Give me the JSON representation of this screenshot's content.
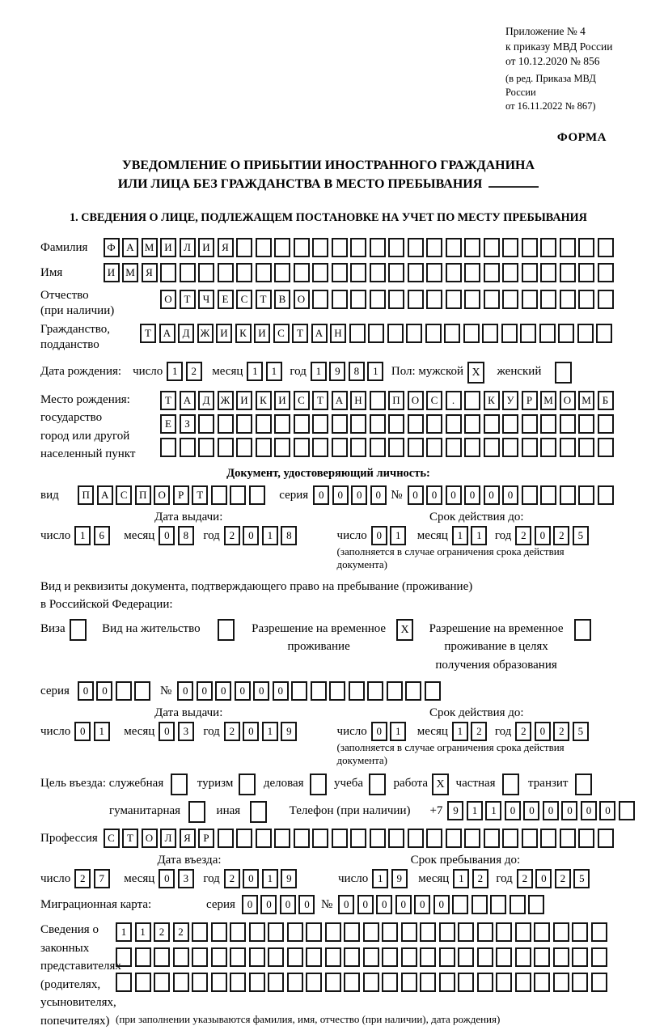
{
  "accent_border_color": "#141414",
  "header": {
    "annex_lines": [
      "Приложение № 4",
      "к приказу МВД России",
      "от 10.12.2020 № 856"
    ],
    "annex_note_lines": [
      "(в ред. Приказа МВД России",
      "от 16.11.2022 № 867)"
    ],
    "form_label": "ФОРМА"
  },
  "title": {
    "line1": "УВЕДОМЛЕНИЕ О ПРИБЫТИИ ИНОСТРАННОГО ГРАЖДАНИНА",
    "line2": "ИЛИ ЛИЦА БЕЗ ГРАЖДАНСТВА В МЕСТО ПРЕБЫВАНИЯ"
  },
  "section1_heading": "1. СВЕДЕНИЯ О ЛИЦЕ, ПОДЛЕЖАЩЕМ ПОСТАНОВКЕ НА УЧЕТ ПО МЕСТУ ПРЕБЫВАНИЯ",
  "labels": {
    "day": "число",
    "month": "месяц",
    "year": "год",
    "series": "серия",
    "number_sign": "№"
  },
  "person": {
    "surname_label": "Фамилия",
    "surname": {
      "value": "ФАМИЛИЯ",
      "count": 27
    },
    "name_label": "Имя",
    "name": {
      "value": "ИМЯ",
      "count": 27
    },
    "patronymic_label1": "Отчество",
    "patronymic_label2": "(при наличии)",
    "patronymic": {
      "value": "ОТЧЕСТВО",
      "count": 24
    },
    "citizenship_label1": "Гражданство,",
    "citizenship_label2": "подданство",
    "citizenship": {
      "value": "ТАДЖИКИСТАН",
      "count": 25
    },
    "birth_date_label": "Дата рождения:",
    "birth_day": {
      "value": "12",
      "count": 2
    },
    "birth_month": {
      "value": "11",
      "count": 2
    },
    "birth_year": {
      "value": "1981",
      "count": 4
    },
    "sex_male_label": "Пол: мужской",
    "sex_male": {
      "value": "X",
      "count": 1
    },
    "sex_female_label": "женский",
    "sex_female": {
      "value": "",
      "count": 1
    },
    "birth_place_labels": [
      "Место рождения:",
      "государство",
      "город или другой",
      "населенный пункт"
    ],
    "birth_place_row1": {
      "value": "ТАДЖИКИСТАН ПОС. КУРМОМБ",
      "count": 24
    },
    "birth_place_row2": {
      "value": "ЕЗ",
      "count": 24
    },
    "birth_place_row3": {
      "value": "",
      "count": 24
    }
  },
  "identity_doc": {
    "heading": "Документ, удостоверяющий личность:",
    "kind_label": "вид",
    "kind": {
      "value": "ПАСПОРТ",
      "count": 10
    },
    "series": {
      "value": "0000",
      "count": 4
    },
    "number": {
      "value": "000000",
      "count": 11
    },
    "issue_header": "Дата выдачи:",
    "issue_day": {
      "value": "16",
      "count": 2
    },
    "issue_month": {
      "value": "08",
      "count": 2
    },
    "issue_year": {
      "value": "2018",
      "count": 4
    },
    "valid_header": "Срок действия до:",
    "valid_day": {
      "value": "01",
      "count": 2
    },
    "valid_month": {
      "value": "11",
      "count": 2
    },
    "valid_year": {
      "value": "2025",
      "count": 4
    },
    "note": "(заполняется в случае ограничения срока действия документа)"
  },
  "residence_doc": {
    "intro_line1": "Вид и реквизиты документа, подтверждающего право на пребывание (проживание)",
    "intro_line2": "в Российской Федерации:",
    "visa_label": "Виза",
    "visa_box": {
      "value": "",
      "count": 1
    },
    "residence_permit_label": "Вид на жительство",
    "residence_permit_box": {
      "value": "",
      "count": 1
    },
    "temp_permit_lines": [
      "Разрешение на временное",
      "проживание"
    ],
    "temp_permit_box": {
      "value": "X",
      "count": 1
    },
    "edu_permit_lines": [
      "Разрешение на временное",
      "проживание в целях",
      "получения образования"
    ],
    "edu_permit_box": {
      "value": "",
      "count": 1
    },
    "series": {
      "value": "00",
      "count": 4
    },
    "number": {
      "value": "000000",
      "count": 14
    },
    "issue_header": "Дата выдачи:",
    "issue_day": {
      "value": "01",
      "count": 2
    },
    "issue_month": {
      "value": "03",
      "count": 2
    },
    "issue_year": {
      "value": "2019",
      "count": 4
    },
    "valid_header": "Срок действия до:",
    "valid_day": {
      "value": "01",
      "count": 2
    },
    "valid_month": {
      "value": "12",
      "count": 2
    },
    "valid_year": {
      "value": "2025",
      "count": 4
    },
    "note": "(заполняется в случае ограничения срока действия документа)"
  },
  "visit": {
    "purpose_label": "Цель въезда: служебная",
    "purpose_box1": {
      "value": "",
      "count": 1
    },
    "tourism_label": "туризм",
    "tourism_box": {
      "value": "",
      "count": 1
    },
    "business_label": "деловая",
    "business_box": {
      "value": "",
      "count": 1
    },
    "study_label": "учеба",
    "study_box": {
      "value": "",
      "count": 1
    },
    "work_label": "работа",
    "work_box": {
      "value": "X",
      "count": 1
    },
    "private_label": "частная",
    "private_box": {
      "value": "",
      "count": 1
    },
    "transit_label": "транзит",
    "transit_box": {
      "value": "",
      "count": 1
    },
    "humanitarian_label": "гуманитарная",
    "humanitarian_box": {
      "value": "",
      "count": 1
    },
    "other_label": "иная",
    "other_box": {
      "value": "",
      "count": 1
    },
    "phone_label": "Телефон (при наличии)",
    "phone_prefix": "+7",
    "phone": {
      "value": "911000000",
      "count": 10
    },
    "profession_label": "Профессия",
    "profession": {
      "value": "СТОЛЯР",
      "count": 27
    },
    "entry_header": "Дата въезда:",
    "entry_day": {
      "value": "27",
      "count": 2
    },
    "entry_month": {
      "value": "03",
      "count": 2
    },
    "entry_year": {
      "value": "2019",
      "count": 4
    },
    "stay_header": "Срок пребывания до:",
    "stay_day": {
      "value": "19",
      "count": 2
    },
    "stay_month": {
      "value": "12",
      "count": 2
    },
    "stay_year": {
      "value": "2025",
      "count": 4
    }
  },
  "migration_card": {
    "label": "Миграционная карта:",
    "series": {
      "value": "0000",
      "count": 4
    },
    "number": {
      "value": "000000",
      "count": 11
    }
  },
  "representatives": {
    "labels": [
      "Сведения о",
      "законных",
      "представителях",
      "(родителях,",
      "усыновителях,",
      "попечителях)"
    ],
    "row1": {
      "value": "1122",
      "count": 26
    },
    "row2": {
      "value": "",
      "count": 26
    },
    "row3": {
      "value": "",
      "count": 26
    },
    "note": "(при заполнении указываются фамилия, имя, отчество (при наличии), дата рождения)"
  }
}
